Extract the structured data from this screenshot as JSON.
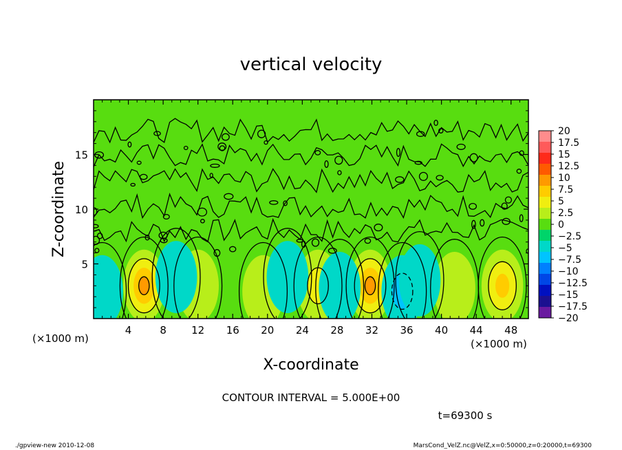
{
  "chart_data": {
    "type": "heatmap",
    "title": "vertical velocity",
    "xlabel": "X-coordinate",
    "ylabel": "Z-coordinate",
    "x_unit_label_left": "(×1000 m)",
    "x_unit_label_right": "(×1000 m)",
    "y_unit_label": "(×1000 m)",
    "xlim": [
      0,
      50
    ],
    "ylim": [
      0,
      20
    ],
    "x_ticks": [
      "4",
      "8",
      "12",
      "16",
      "20",
      "24",
      "28",
      "32",
      "36",
      "40",
      "44",
      "48"
    ],
    "x_tick_values": [
      4,
      8,
      12,
      16,
      20,
      24,
      28,
      32,
      36,
      40,
      44,
      48
    ],
    "y_ticks": [
      "5",
      "10",
      "15"
    ],
    "y_tick_values": [
      5,
      10,
      15
    ],
    "colorbar": {
      "levels": [
        20,
        17.5,
        15,
        12.5,
        10,
        7.5,
        5,
        2.5,
        0,
        -2.5,
        -5,
        -7.5,
        -10,
        -12.5,
        -15,
        -17.5,
        -20
      ],
      "labels": [
        "20",
        "17.5",
        "15",
        "12.5",
        "10",
        "7.5",
        "5",
        "2.5",
        "0",
        "−2.5",
        "−5",
        "−7.5",
        "−10",
        "−12.5",
        "−15",
        "−17.5",
        "−20"
      ],
      "colors": [
        "#ff8c8c",
        "#ff5a5a",
        "#ff2a1a",
        "#ff5a00",
        "#ff9a00",
        "#ffcc00",
        "#f0ee10",
        "#b8ee1a",
        "#58dd10",
        "#00d46a",
        "#00d8c8",
        "#00c4ff",
        "#0080ff",
        "#0046e6",
        "#0010c0",
        "#1c1090",
        "#6a1aa0"
      ]
    },
    "updraft_cores": [
      {
        "x": 5.8,
        "z": 3.0,
        "w": 12
      },
      {
        "x": 25.8,
        "z": 3.0,
        "w": 7
      },
      {
        "x": 31.8,
        "z": 3.0,
        "w": 10
      },
      {
        "x": 47.0,
        "z": 3.0,
        "w": 8
      },
      {
        "x": 19.5,
        "z": 2.5,
        "w": 3
      },
      {
        "x": 41.5,
        "z": 2.8,
        "w": 3
      },
      {
        "x": 12.0,
        "z": 3.0,
        "w": 2
      }
    ],
    "downdraft_cores": [
      {
        "x": 1.0,
        "z": 2.5,
        "w": -3
      },
      {
        "x": 9.5,
        "z": 3.8,
        "w": -3
      },
      {
        "x": 22.3,
        "z": 3.8,
        "w": -3
      },
      {
        "x": 28.3,
        "z": 2.8,
        "w": -4
      },
      {
        "x": 35.5,
        "z": 2.5,
        "w": -6
      },
      {
        "x": 37.5,
        "z": 3.5,
        "w": -3
      }
    ],
    "grid": false,
    "legend": "colorbar-right"
  },
  "annotations": {
    "contour_interval": "CONTOUR INTERVAL = 5.000E+00",
    "time": "t=69300 s",
    "footer_left": "./gpview-new   2010-12-08",
    "footer_right": "MarsCond_VelZ.nc@VelZ,x=0:50000,z=0:20000,t=69300"
  }
}
